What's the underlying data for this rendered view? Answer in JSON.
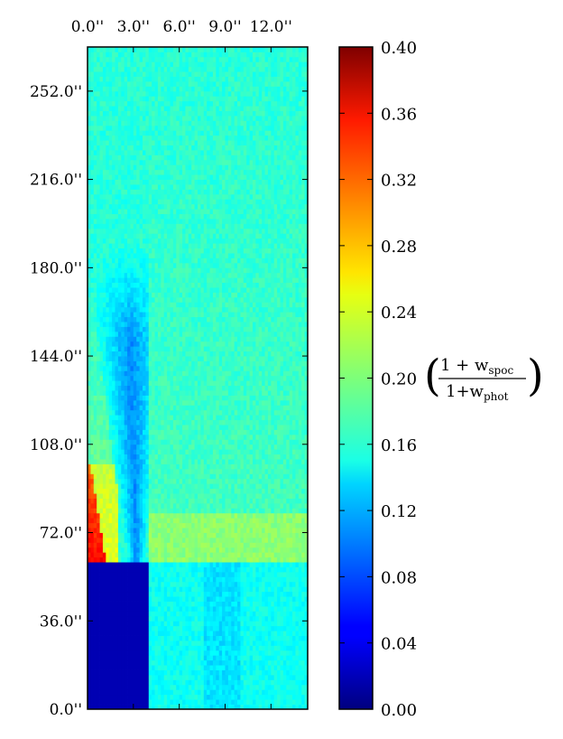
{
  "chart_data": {
    "type": "heatmap",
    "x_ticks": [
      "0.0''",
      "3.0''",
      "6.0''",
      "9.0''",
      "12.0''"
    ],
    "x_tick_values": [
      0,
      3,
      6,
      9,
      12
    ],
    "xlim": [
      0,
      14.4
    ],
    "y_ticks": [
      "0.0''",
      "36.0''",
      "72.0''",
      "108.0''",
      "144.0''",
      "180.0''",
      "216.0''",
      "252.0''"
    ],
    "y_tick_values": [
      0,
      36,
      72,
      108,
      144,
      180,
      216,
      252
    ],
    "ylim": [
      0,
      270
    ],
    "colorbar": {
      "ticks": [
        "0.00",
        "0.04",
        "0.08",
        "0.12",
        "0.16",
        "0.20",
        "0.24",
        "0.28",
        "0.32",
        "0.36",
        "0.40"
      ],
      "range": [
        0,
        0.4
      ],
      "colormap": "jet",
      "label": {
        "paren_left": "(",
        "num_prefix": "1 + w",
        "num_sub": "spoc",
        "den_prefix": "1+w",
        "den_sub": "phot",
        "paren_right": ")"
      }
    },
    "regions": [
      {
        "x": [
          0,
          4.0
        ],
        "y": [
          0,
          60
        ],
        "value": 0.02
      },
      {
        "x": [
          0,
          1.2
        ],
        "y": [
          60,
          100
        ],
        "value": 0.31
      },
      {
        "x": [
          4.0,
          14.4
        ],
        "y": [
          60,
          80
        ],
        "value": 0.205
      },
      {
        "x": [
          2.0,
          4.0
        ],
        "y": [
          60,
          190
        ],
        "value": 0.11
      },
      {
        "x": [
          0,
          4.0
        ],
        "y": [
          190,
          270
        ],
        "value": 0.165
      },
      {
        "x": [
          4.0,
          14.4
        ],
        "y": [
          80,
          270
        ],
        "value": 0.175
      },
      {
        "x": [
          4.0,
          14.4
        ],
        "y": [
          0,
          60
        ],
        "value": 0.155
      }
    ],
    "background_value": 0.165
  }
}
